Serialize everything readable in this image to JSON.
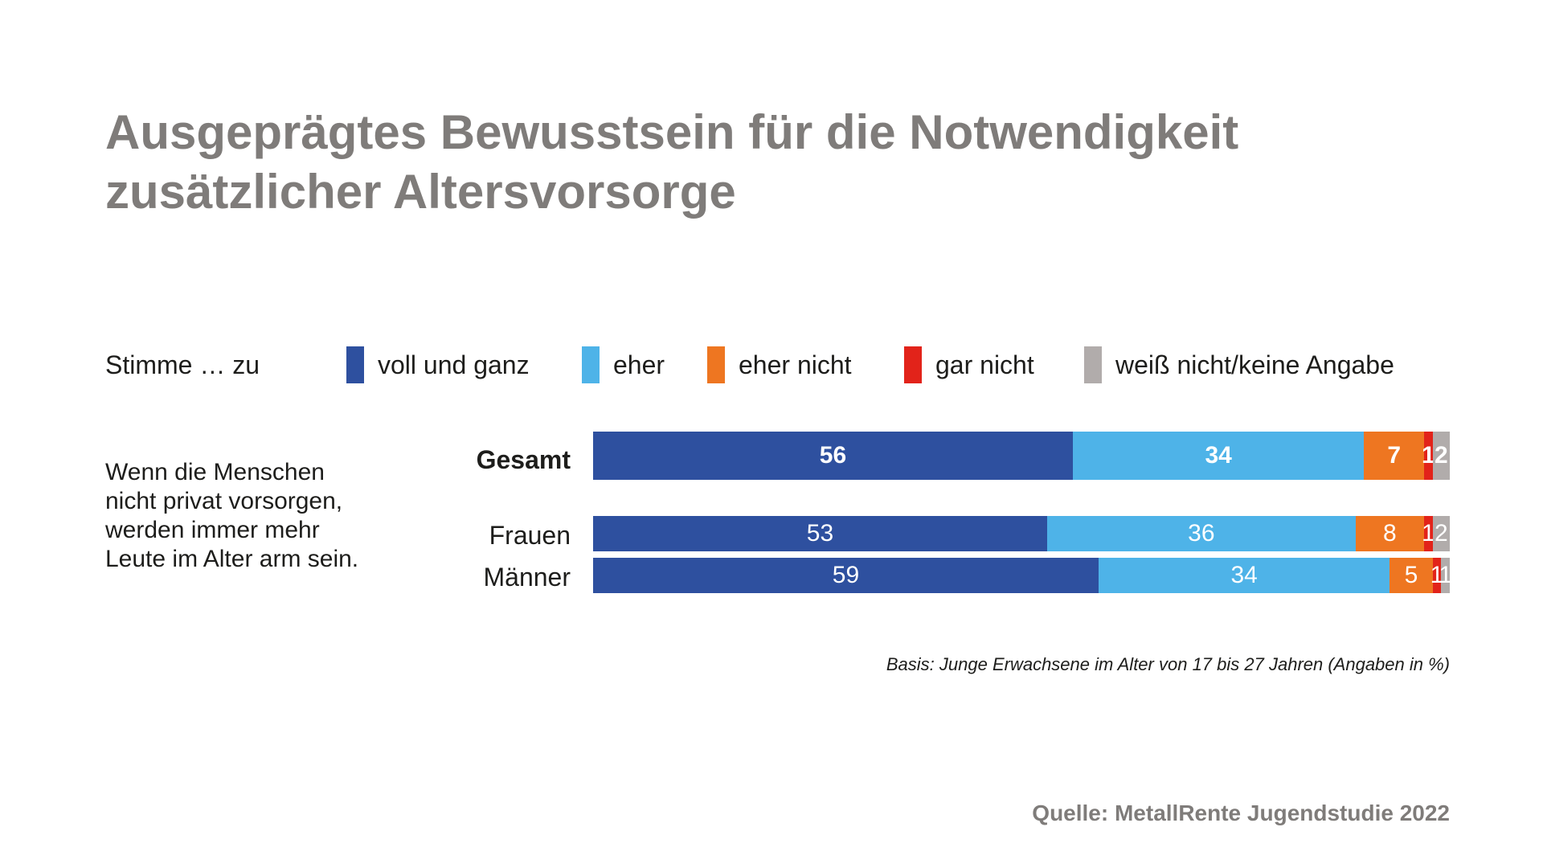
{
  "header": {
    "title_line1": "Ausgeprägtes Bewusstsein für die Notwendigkeit",
    "title_line2": "zusätzlicher Altersvorsorge"
  },
  "legend": {
    "label": "Stimme … zu",
    "items": [
      {
        "name": "voll und ganz",
        "color": "#2e509f"
      },
      {
        "name": "eher",
        "color": "#4eb3e8"
      },
      {
        "name": "eher nicht",
        "color": "#ee7621"
      },
      {
        "name": "gar nicht",
        "color": "#e2231a"
      },
      {
        "name": "weiß nicht/keine Angabe",
        "color": "#b1acab"
      }
    ]
  },
  "statement": {
    "line1": "Wenn die Menschen",
    "line2": "nicht privat vorsorgen,",
    "line3": "werden immer mehr",
    "line4": "Leute im Alter arm sein."
  },
  "chart_data": {
    "type": "bar",
    "orientation": "horizontal",
    "stacked": true,
    "categories": [
      "Gesamt",
      "Frauen",
      "Männer"
    ],
    "series": [
      {
        "name": "voll und ganz",
        "values": [
          56,
          53,
          59
        ],
        "color": "#2e509f"
      },
      {
        "name": "eher",
        "values": [
          34,
          36,
          34
        ],
        "color": "#4eb3e8"
      },
      {
        "name": "eher nicht",
        "values": [
          7,
          8,
          5
        ],
        "color": "#ee7621"
      },
      {
        "name": "gar nicht",
        "values": [
          1,
          1,
          1
        ],
        "color": "#e2231a"
      },
      {
        "name": "weiß nicht/keine Angabe",
        "values": [
          2,
          2,
          1
        ],
        "color": "#b1acab"
      }
    ],
    "xlim": [
      0,
      100
    ],
    "legend_position": "top",
    "grid": false
  },
  "footer": {
    "basis": "Basis: Junge Erwachsene im Alter von 17 bis 27 Jahren (Angaben in %)",
    "source": "Quelle: MetallRente Jugendstudie 2022"
  }
}
